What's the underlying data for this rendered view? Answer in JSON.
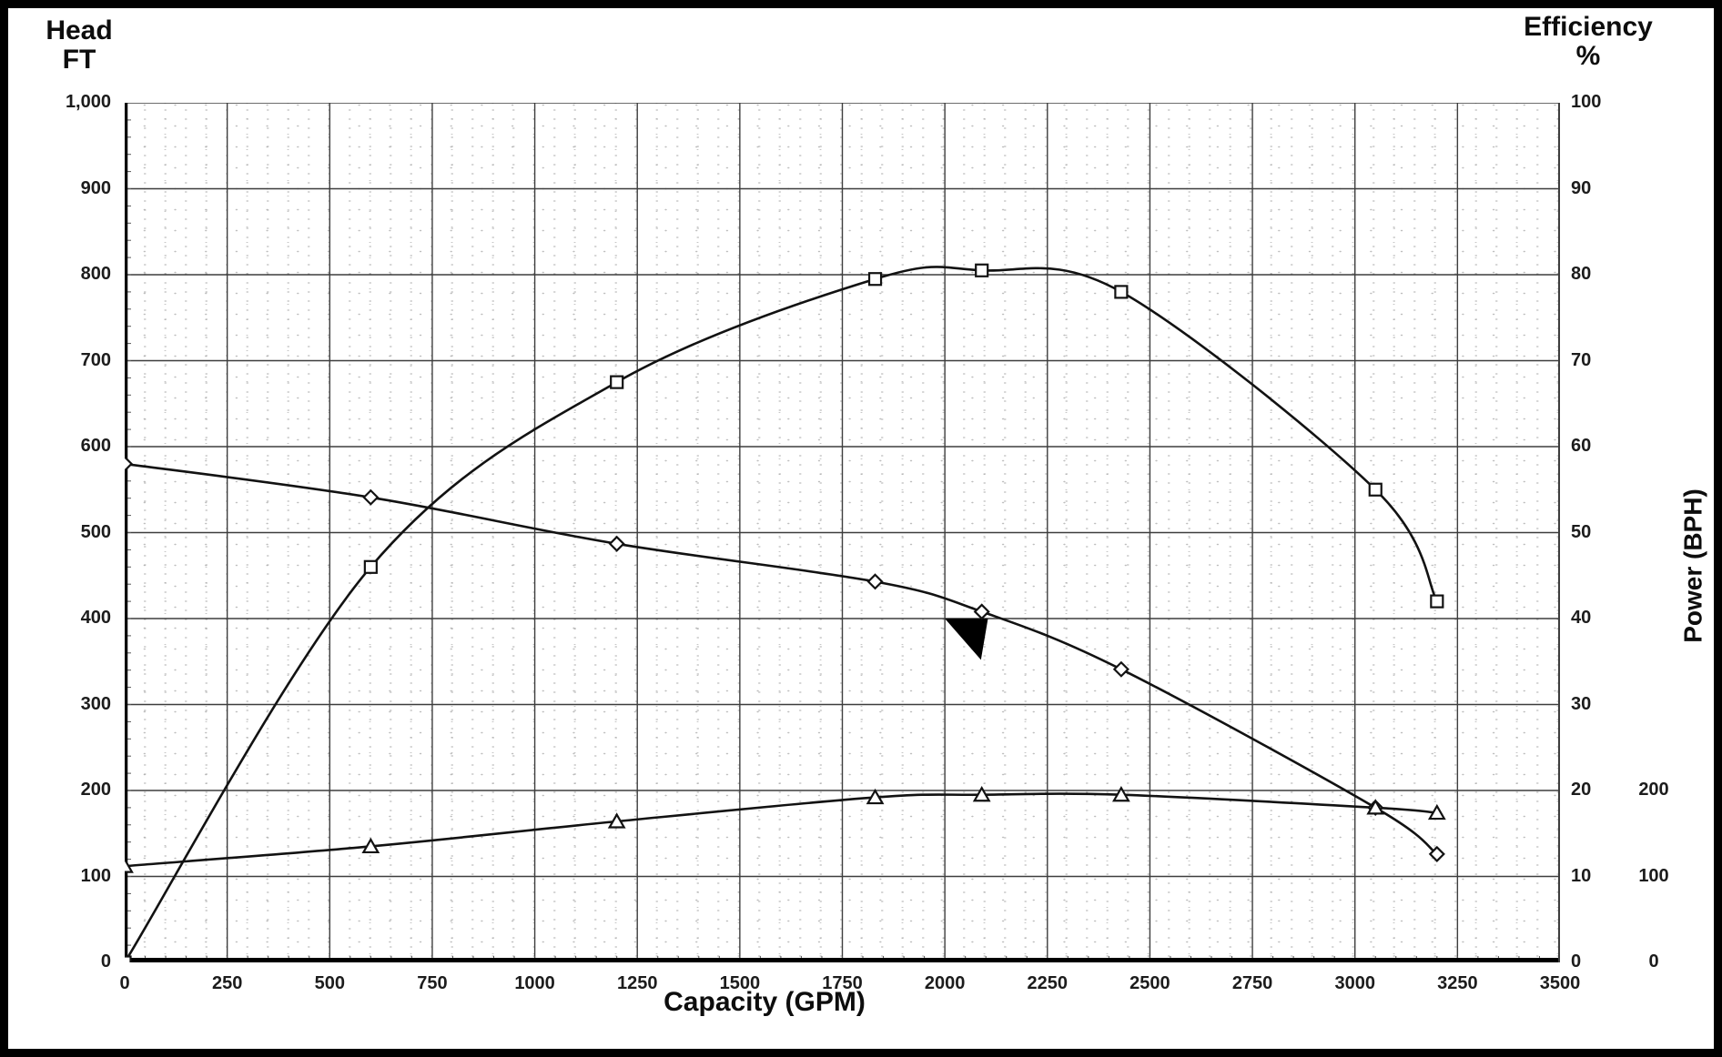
{
  "figure": {
    "left_axis_title_line1": "Head",
    "left_axis_title_line2": "FT",
    "right_axis_title_line1": "Efficiency",
    "right_axis_title_line2": "%",
    "power_axis_title": "Power (BPH)",
    "x_axis_title": "Capacity (GPM)"
  },
  "colors": {
    "ink": "#121212",
    "grid": "#3d3d3d",
    "axis": "#000000",
    "marker_fill": "#ffffff",
    "paper": "#ffffff",
    "annotation_fill": "#000000"
  },
  "chart_data": {
    "type": "line",
    "title": "Pump performance curves: Head, Efficiency and Power vs Capacity",
    "xlabel": "Capacity (GPM)",
    "ylabel_left": "Head FT",
    "ylabel_right": "Efficiency %",
    "ylabel_far_right": "Power (BPH)",
    "xlim": [
      0,
      3500
    ],
    "ylim_head": [
      0,
      1000
    ],
    "ylim_efficiency": [
      0,
      100
    ],
    "grid": true,
    "legend": "none",
    "x_ticks": [
      {
        "label": "0",
        "value": 0
      },
      {
        "label": "250",
        "value": 250
      },
      {
        "label": "500",
        "value": 500
      },
      {
        "label": "750",
        "value": 750
      },
      {
        "label": "1000",
        "value": 1000
      },
      {
        "label": "1250",
        "value": 1250
      },
      {
        "label": "1500",
        "value": 1500
      },
      {
        "label": "1750",
        "value": 1750
      },
      {
        "label": "2000",
        "value": 2000
      },
      {
        "label": "2250",
        "value": 2250
      },
      {
        "label": "2500",
        "value": 2500
      },
      {
        "label": "2750",
        "value": 2750
      },
      {
        "label": "3000",
        "value": 3000
      },
      {
        "label": "3250",
        "value": 3250
      },
      {
        "label": "3500",
        "value": 3500
      }
    ],
    "head_ticks": [
      {
        "label": "1,000",
        "value": 1000
      },
      {
        "label": "900",
        "value": 900
      },
      {
        "label": "800",
        "value": 800
      },
      {
        "label": "700",
        "value": 700
      },
      {
        "label": "600",
        "value": 600
      },
      {
        "label": "500",
        "value": 500
      },
      {
        "label": "400",
        "value": 400
      },
      {
        "label": "300",
        "value": 300
      },
      {
        "label": "200",
        "value": 200
      },
      {
        "label": "100",
        "value": 100
      },
      {
        "label": "0",
        "value": 0
      }
    ],
    "efficiency_ticks": [
      {
        "label": "100",
        "value": 100
      },
      {
        "label": "90",
        "value": 90
      },
      {
        "label": "80",
        "value": 80
      },
      {
        "label": "70",
        "value": 70
      },
      {
        "label": "60",
        "value": 60
      },
      {
        "label": "50",
        "value": 50
      },
      {
        "label": "40",
        "value": 40
      },
      {
        "label": "30",
        "value": 30
      },
      {
        "label": "20",
        "value": 20
      },
      {
        "label": "10",
        "value": 10
      },
      {
        "label": "0",
        "value": 0
      }
    ],
    "power_ticks": [
      {
        "label": "200",
        "head_equiv": 200
      },
      {
        "label": "100",
        "head_equiv": 100
      },
      {
        "label": "0",
        "head_equiv": 0
      }
    ],
    "series": [
      {
        "name": "Head (FT)",
        "marker": "diamond",
        "axis": "head",
        "points": [
          [
            0,
            580
          ],
          [
            600,
            541
          ],
          [
            1200,
            487
          ],
          [
            1830,
            443
          ],
          [
            2090,
            408
          ],
          [
            2430,
            341
          ],
          [
            3050,
            180
          ],
          [
            3200,
            126
          ]
        ]
      },
      {
        "name": "Efficiency (%)",
        "marker": "square",
        "axis": "efficiency",
        "points": [
          [
            0,
            0
          ],
          [
            600,
            46
          ],
          [
            1200,
            67.5
          ],
          [
            1830,
            79.5
          ],
          [
            2090,
            80.5
          ],
          [
            2430,
            78
          ],
          [
            3050,
            55
          ],
          [
            3200,
            42
          ]
        ]
      },
      {
        "name": "Power (BPH)",
        "marker": "triangle",
        "axis": "power_head_scale",
        "points": [
          [
            0,
            112
          ],
          [
            600,
            135
          ],
          [
            1200,
            164
          ],
          [
            1830,
            192
          ],
          [
            2090,
            195
          ],
          [
            2430,
            195
          ],
          [
            3050,
            180
          ],
          [
            3200,
            174
          ]
        ]
      }
    ],
    "annotation": {
      "shape": "filled-triangle-pointer",
      "description": "solid black triangle pointer just below head curve near 2100 GPM / 400 FT",
      "points_gpm_ft": [
        [
          2000,
          400
        ],
        [
          2105,
          400
        ],
        [
          2088,
          352
        ]
      ]
    }
  }
}
